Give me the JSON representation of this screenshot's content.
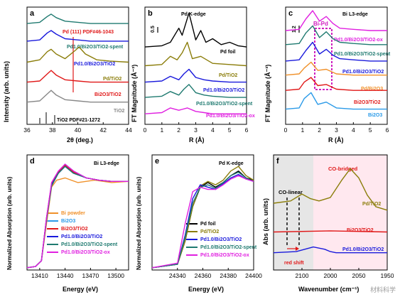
{
  "panels": {
    "a": {
      "letter": "a",
      "xlabel": "2θ (deg.)",
      "ylabel": "Intensity (arb. units)",
      "xticks": [
        "36",
        "38",
        "40",
        "42",
        "44"
      ],
      "labels": [
        "Pd (111) PDF#46-1043",
        "Pd1.0/Bi2O3/TiO2-spent",
        "Pd1.0/Bi2O3/TiO2",
        "Pd/TiO2",
        "Bi2O3/TiO2",
        "TiO2",
        "TiO2 PDF#21-1272"
      ]
    },
    "b": {
      "letter": "b",
      "title": "Pd K-edge",
      "xlabel": "R (Å)",
      "ylabel": "FT Magnitude (Å⁻³)",
      "scale": "0.5",
      "xticks": [
        "0",
        "1",
        "2",
        "3",
        "4",
        "5",
        "6"
      ],
      "labels": [
        "Pd foil",
        "Pd/TiO2",
        "Pd1.0/Bi2O3/TiO2",
        "Pd1.0/Bi2O3/TiO2-spent",
        "Pd1.0/Bi2O3/TiO2-ox"
      ]
    },
    "c": {
      "letter": "c",
      "title": "Bi L3-edge",
      "xlabel": "R (Å)",
      "ylabel": "FT Magnitude (Å⁻³)",
      "scale": "1.2",
      "box": "Bi-Pd",
      "xticks": [
        "0",
        "1",
        "2",
        "3",
        "4",
        "5",
        "6"
      ],
      "labels": [
        "Pd1.0/Bi2O3/TiO2-ox",
        "Pd1.0/Bi2O3/TiO2-spent",
        "Pd1.0/Bi2O3/TiO2",
        "Pd/Bi2O3",
        "Bi2O3/TiO2",
        "Bi2O3"
      ]
    },
    "d": {
      "letter": "d",
      "title": "Bi L3-edge",
      "xlabel": "Energy (eV)",
      "ylabel": "Normalized Absorption (arb. units)",
      "xticks": [
        "13410",
        "13440",
        "13470",
        "13500"
      ],
      "legend": [
        "Bi powder",
        "Bi2O3",
        "Bi2O3/TiO2",
        "Pd1.0/Bi2O3/TiO2",
        "Pd1.0/Bi2O3/TiO2-spent",
        "Pd1.0/Bi2O3/TiO2-ox"
      ]
    },
    "e": {
      "letter": "e",
      "title": "Pd K-edge",
      "xlabel": "Energy (eV)",
      "ylabel": "Normalized Absorption (arb. units)",
      "xticks": [
        "24340",
        "24360",
        "24380",
        "24400"
      ],
      "legend": [
        "Pd foil",
        "Pd/TiO2",
        "Pd1.0/Bi2O3/TiO2",
        "Pd1.0/Bi2O3/TiO2-spent",
        "Pd1.0/Bi2O3/TiO2-ox"
      ]
    },
    "f": {
      "letter": "f",
      "xlabel": "Wavenumber (cm⁻¹)",
      "ylabel": "Abs (arb. units)",
      "xticks": [
        "2100",
        "2000",
        "2050",
        "1950"
      ],
      "labels": [
        "CO-bridged",
        "CO-linear",
        "Pd/TiO2",
        "Bi2O3/TiO2",
        "Pd1.0/Bi2O3/TiO2",
        "red shift"
      ]
    }
  },
  "watermark": "材料科学",
  "colors": {
    "black": "#000000",
    "olive": "#8B7D0A",
    "blue": "#1a1adc",
    "teal": "#1f7a70",
    "magenta": "#e020e0",
    "red": "#e01818",
    "orange": "#f0912a",
    "gray": "#888888",
    "lightblue": "#2a9ae8",
    "pink": "#ffe3ec"
  },
  "chart_data": [
    {
      "type": "line",
      "panel": "a",
      "xlabel": "2θ (deg.)",
      "ylabel": "Intensity (arb. units)",
      "xlim": [
        36,
        44
      ],
      "series": [
        {
          "name": "Pd1.0/Bi2O3/TiO2-spent",
          "color": "#1f7a70",
          "x": [
            36,
            37,
            37.6,
            37.9,
            38.3,
            39,
            40,
            41,
            42,
            43,
            44
          ],
          "y": [
            0.86,
            0.87,
            0.92,
            0.94,
            0.91,
            0.88,
            0.87,
            0.86,
            0.86,
            0.86,
            0.86
          ]
        },
        {
          "name": "Pd1.0/Bi2O3/TiO2",
          "color": "#1a1adc",
          "x": [
            36,
            37,
            37.6,
            37.9,
            38.3,
            39,
            40,
            41,
            42,
            43,
            44
          ],
          "y": [
            0.71,
            0.72,
            0.78,
            0.8,
            0.77,
            0.73,
            0.72,
            0.71,
            0.71,
            0.71,
            0.71
          ]
        },
        {
          "name": "Pd/TiO2",
          "color": "#8B7D0A",
          "x": [
            36,
            37,
            37.6,
            37.9,
            38.3,
            39,
            39.8,
            40.1,
            40.6,
            41.5,
            42.5,
            44
          ],
          "y": [
            0.53,
            0.55,
            0.62,
            0.64,
            0.6,
            0.56,
            0.63,
            0.66,
            0.6,
            0.55,
            0.54,
            0.53
          ]
        },
        {
          "name": "Bi2O3/TiO2",
          "color": "#e01818",
          "x": [
            36,
            37,
            37.6,
            37.9,
            38.3,
            39,
            40,
            41,
            42,
            43,
            44
          ],
          "y": [
            0.36,
            0.37,
            0.43,
            0.46,
            0.42,
            0.38,
            0.37,
            0.36,
            0.36,
            0.36,
            0.36
          ]
        },
        {
          "name": "TiO2",
          "color": "#888888",
          "x": [
            36,
            37,
            37.6,
            37.9,
            38.3,
            39,
            40,
            41,
            42,
            43,
            44
          ],
          "y": [
            0.19,
            0.2,
            0.26,
            0.29,
            0.25,
            0.21,
            0.2,
            0.19,
            0.19,
            0.19,
            0.19
          ]
        }
      ]
    },
    {
      "type": "line",
      "panel": "b",
      "xlabel": "R (Å)",
      "xlim": [
        0,
        6
      ],
      "series": [
        {
          "name": "Pd foil",
          "color": "#000000",
          "x": [
            0,
            1,
            1.5,
            2,
            2.2,
            2.6,
            3,
            3.3,
            3.6,
            4,
            4.5,
            5,
            5.5,
            6
          ],
          "y": [
            0.66,
            0.67,
            0.7,
            0.82,
            0.76,
            0.95,
            0.72,
            0.8,
            0.7,
            0.73,
            0.68,
            0.7,
            0.67,
            0.66
          ]
        },
        {
          "name": "Pd/TiO2",
          "color": "#8B7D0A",
          "x": [
            0,
            1,
            1.5,
            1.9,
            2.2,
            2.5,
            2.8,
            3.3,
            4,
            5,
            6
          ],
          "y": [
            0.5,
            0.51,
            0.58,
            0.55,
            0.61,
            0.7,
            0.56,
            0.58,
            0.52,
            0.51,
            0.5
          ]
        },
        {
          "name": "Pd1.0/Bi2O3/TiO2",
          "color": "#1a1adc",
          "x": [
            0,
            1,
            1.5,
            2,
            2.3,
            2.6,
            3,
            3.5,
            4,
            5,
            6
          ],
          "y": [
            0.36,
            0.37,
            0.41,
            0.38,
            0.43,
            0.47,
            0.4,
            0.38,
            0.37,
            0.36,
            0.36
          ]
        },
        {
          "name": "Pd1.0/Bi2O3/TiO2-spent",
          "color": "#1f7a70",
          "x": [
            0,
            1,
            1.5,
            2,
            2.3,
            2.6,
            3,
            3.5,
            4,
            5,
            6
          ],
          "y": [
            0.23,
            0.24,
            0.28,
            0.25,
            0.3,
            0.34,
            0.27,
            0.25,
            0.24,
            0.23,
            0.23
          ]
        },
        {
          "name": "Pd1.0/Bi2O3/TiO2-ox",
          "color": "#e020e0",
          "x": [
            0,
            1,
            1.5,
            2,
            2.5,
            3,
            3.5,
            4,
            5,
            6
          ],
          "y": [
            0.09,
            0.1,
            0.14,
            0.12,
            0.14,
            0.11,
            0.1,
            0.09,
            0.09,
            0.09
          ]
        }
      ]
    },
    {
      "type": "line",
      "panel": "c",
      "xlabel": "R (Å)",
      "xlim": [
        0,
        6
      ],
      "series": [
        {
          "name": "Pd1.0/Bi2O3/TiO2-ox",
          "color": "#e020e0",
          "x": [
            0,
            0.8,
            1.2,
            1.6,
            2,
            2.4,
            2.8,
            3.2,
            4,
            5,
            6
          ],
          "y": [
            0.8,
            0.81,
            0.9,
            0.97,
            0.88,
            0.92,
            0.86,
            0.82,
            0.81,
            0.8,
            0.8
          ]
        },
        {
          "name": "Pd1.0/Bi2O3/TiO2-spent",
          "color": "#1f7a70",
          "x": [
            0,
            0.8,
            1.2,
            1.6,
            2,
            2.4,
            2.8,
            3.2,
            4,
            5,
            6
          ],
          "y": [
            0.68,
            0.69,
            0.78,
            0.84,
            0.74,
            0.79,
            0.73,
            0.7,
            0.69,
            0.68,
            0.68
          ]
        },
        {
          "name": "Pd1.0/Bi2O3/TiO2",
          "color": "#1a1adc",
          "x": [
            0,
            0.8,
            1.2,
            1.6,
            2,
            2.4,
            2.8,
            3.2,
            4,
            5,
            6
          ],
          "y": [
            0.54,
            0.55,
            0.63,
            0.7,
            0.6,
            0.64,
            0.59,
            0.56,
            0.55,
            0.54,
            0.54
          ]
        },
        {
          "name": "Pd/Bi2O3",
          "color": "#f0912a",
          "x": [
            0,
            0.8,
            1.1,
            1.5,
            1.9,
            2.4,
            3,
            4,
            5,
            6
          ],
          "y": [
            0.42,
            0.43,
            0.48,
            0.53,
            0.46,
            0.47,
            0.43,
            0.42,
            0.42,
            0.42
          ]
        },
        {
          "name": "Bi2O3/TiO2",
          "color": "#e01818",
          "x": [
            0,
            0.8,
            1.1,
            1.5,
            1.9,
            2.4,
            3,
            4,
            5,
            6
          ],
          "y": [
            0.29,
            0.3,
            0.36,
            0.4,
            0.33,
            0.34,
            0.3,
            0.29,
            0.29,
            0.29
          ]
        },
        {
          "name": "Bi2O3",
          "color": "#2a9ae8",
          "x": [
            0,
            0.8,
            1.1,
            1.5,
            1.9,
            2.4,
            3,
            4,
            5,
            6
          ],
          "y": [
            0.13,
            0.14,
            0.22,
            0.27,
            0.17,
            0.19,
            0.14,
            0.13,
            0.13,
            0.13
          ]
        }
      ]
    },
    {
      "type": "line",
      "panel": "d",
      "xlabel": "Energy (eV)",
      "xlim": [
        13395,
        13515
      ],
      "series": [
        {
          "name": "Bi powder",
          "color": "#f0912a",
          "x": [
            13395,
            13405,
            13412,
            13418,
            13424,
            13430,
            13440,
            13455,
            13475,
            13495,
            13515
          ],
          "y": [
            0.02,
            0.03,
            0.08,
            0.4,
            0.72,
            0.78,
            0.8,
            0.76,
            0.78,
            0.76,
            0.77
          ]
        },
        {
          "name": "Bi2O3",
          "color": "#2a9ae8",
          "x": [
            13395,
            13405,
            13412,
            13418,
            13424,
            13432,
            13440,
            13450,
            13465,
            13480,
            13495,
            13515
          ],
          "y": [
            0.02,
            0.03,
            0.08,
            0.45,
            0.75,
            0.85,
            0.92,
            0.86,
            0.8,
            0.78,
            0.77,
            0.77
          ]
        },
        {
          "name": "Bi2O3/TiO2",
          "color": "#e01818",
          "x": [
            13395,
            13405,
            13412,
            13418,
            13424,
            13432,
            13440,
            13450,
            13465,
            13480,
            13495,
            13515
          ],
          "y": [
            0.02,
            0.03,
            0.08,
            0.45,
            0.75,
            0.85,
            0.91,
            0.85,
            0.8,
            0.78,
            0.77,
            0.77
          ]
        },
        {
          "name": "Pd1.0/Bi2O3/TiO2",
          "color": "#1a1adc",
          "x": [
            13395,
            13405,
            13412,
            13418,
            13424,
            13432,
            13440,
            13450,
            13465,
            13480,
            13495,
            13515
          ],
          "y": [
            0.02,
            0.03,
            0.08,
            0.44,
            0.74,
            0.84,
            0.9,
            0.84,
            0.8,
            0.78,
            0.77,
            0.77
          ]
        },
        {
          "name": "Pd1.0/Bi2O3/TiO2-spent",
          "color": "#1f7a70",
          "x": [
            13395,
            13405,
            13412,
            13418,
            13424,
            13432,
            13440,
            13450,
            13465,
            13480,
            13495,
            13515
          ],
          "y": [
            0.02,
            0.03,
            0.08,
            0.43,
            0.73,
            0.84,
            0.9,
            0.84,
            0.8,
            0.78,
            0.77,
            0.77
          ]
        },
        {
          "name": "Pd1.0/Bi2O3/TiO2-ox",
          "color": "#e020e0",
          "x": [
            13395,
            13405,
            13412,
            13418,
            13424,
            13432,
            13440,
            13450,
            13465,
            13480,
            13495,
            13515
          ],
          "y": [
            0.02,
            0.03,
            0.08,
            0.45,
            0.76,
            0.86,
            0.92,
            0.86,
            0.8,
            0.78,
            0.77,
            0.77
          ]
        }
      ]
    },
    {
      "type": "line",
      "panel": "e",
      "xlabel": "Energy (eV)",
      "xlim": [
        24320,
        24400
      ],
      "series": [
        {
          "name": "Pd foil",
          "color": "#000000",
          "x": [
            24320,
            24340,
            24346,
            24352,
            24358,
            24364,
            24370,
            24376,
            24382,
            24388,
            24394,
            24400
          ],
          "y": [
            0.02,
            0.05,
            0.25,
            0.55,
            0.72,
            0.76,
            0.72,
            0.76,
            0.82,
            0.86,
            0.8,
            0.78
          ]
        },
        {
          "name": "Pd/TiO2",
          "color": "#8B7D0A",
          "x": [
            24320,
            24340,
            24346,
            24352,
            24358,
            24364,
            24370,
            24376,
            24382,
            24388,
            24394,
            24400
          ],
          "y": [
            0.02,
            0.05,
            0.25,
            0.55,
            0.73,
            0.77,
            0.74,
            0.78,
            0.86,
            0.9,
            0.82,
            0.78
          ]
        },
        {
          "name": "Pd1.0/Bi2O3/TiO2",
          "color": "#1a1adc",
          "x": [
            24320,
            24340,
            24346,
            24352,
            24358,
            24364,
            24370,
            24376,
            24382,
            24388,
            24394,
            24400
          ],
          "y": [
            0.02,
            0.05,
            0.3,
            0.62,
            0.74,
            0.72,
            0.7,
            0.75,
            0.8,
            0.83,
            0.79,
            0.77
          ]
        },
        {
          "name": "Pd1.0/Bi2O3/TiO2-spent",
          "color": "#1f7a70",
          "x": [
            24320,
            24340,
            24346,
            24352,
            24358,
            24364,
            24370,
            24376,
            24382,
            24388,
            24394,
            24400
          ],
          "y": [
            0.02,
            0.05,
            0.28,
            0.58,
            0.72,
            0.74,
            0.71,
            0.76,
            0.82,
            0.85,
            0.8,
            0.77
          ]
        },
        {
          "name": "Pd1.0/Bi2O3/TiO2-ox",
          "color": "#e020e0",
          "x": [
            24320,
            24340,
            24346,
            24352,
            24358,
            24364,
            24370,
            24376,
            24382,
            24388,
            24394,
            24400
          ],
          "y": [
            0.02,
            0.06,
            0.4,
            0.68,
            0.72,
            0.7,
            0.7,
            0.74,
            0.79,
            0.82,
            0.79,
            0.77
          ]
        }
      ]
    },
    {
      "type": "line",
      "panel": "f",
      "xlabel": "Wavenumber (cm⁻¹)",
      "xlim": [
        2150,
        1950
      ],
      "series": [
        {
          "name": "Pd/TiO2",
          "color": "#8B7D0A",
          "x": [
            2150,
            2120,
            2100,
            2085,
            2070,
            2050,
            2030,
            2015,
            2000,
            1985,
            1970,
            1950
          ],
          "y": [
            0.58,
            0.6,
            0.66,
            0.62,
            0.6,
            0.63,
            0.78,
            0.88,
            0.8,
            0.65,
            0.55,
            0.52
          ]
        },
        {
          "name": "Bi2O3/TiO2",
          "color": "#e01818",
          "x": [
            2150,
            2050,
            1950
          ],
          "y": [
            0.33,
            0.34,
            0.33
          ]
        },
        {
          "name": "Pd1.0/Bi2O3/TiO2",
          "color": "#1a1adc",
          "x": [
            2150,
            2110,
            2080,
            2060,
            2050,
            2040,
            2020,
            1950
          ],
          "y": [
            0.15,
            0.16,
            0.2,
            0.18,
            0.16,
            0.15,
            0.15,
            0.15
          ]
        }
      ]
    }
  ]
}
